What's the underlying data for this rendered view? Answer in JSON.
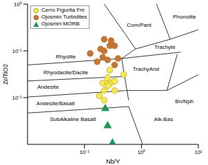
{
  "chart_data": {
    "type": "scatter",
    "x_label": "Nb/Y",
    "y_label": "Zr/TiO2",
    "log": true,
    "legend": "top-left",
    "xlim": [
      0.01,
      10
    ],
    "ylim": [
      0.001,
      1
    ],
    "xticks": [
      {
        "value": 0.1,
        "label": "10⁻¹"
      },
      {
        "value": 1,
        "label": "10⁰"
      },
      {
        "value": 10,
        "label": "10¹"
      }
    ],
    "yticks": [
      {
        "value": 0.01,
        "label": "10⁻²"
      },
      {
        "value": 0.1,
        "label": "10⁻¹"
      },
      {
        "value": 1,
        "label": "10⁰"
      }
    ],
    "series": [
      {
        "name": "Cerro Figurita Fm",
        "color": "#f4e94a",
        "marker": "circle",
        "x": [
          0.209,
          0.255,
          0.294,
          0.338,
          0.222,
          0.182,
          0.222,
          0.255,
          0.338,
          0.278,
          0.488,
          0.26
        ],
        "y": [
          0.0206,
          0.0206,
          0.0206,
          0.0226,
          0.0142,
          0.011,
          0.0088,
          0.0266,
          0.0142,
          0.0388,
          0.0312,
          0.018
        ]
      },
      {
        "name": "Ojosmin Turbidites",
        "color": "#c87533",
        "marker": "circle",
        "x": [
          0.192,
          0.222,
          0.278,
          0.338,
          0.222,
          0.294,
          0.126,
          0.209,
          0.389,
          0.167,
          0.338,
          0.255
        ],
        "y": [
          0.11,
          0.1,
          0.129,
          0.129,
          0.177,
          0.166,
          0.088,
          0.073,
          0.0686,
          0.0586,
          0.05,
          0.064
        ]
      },
      {
        "name": "Ojosmin MORB",
        "color": "#1a9850",
        "marker": "triangle",
        "x": [
          0.232,
          0.255,
          0.31
        ],
        "y": [
          0.0058,
          0.0025,
          0.00106
        ]
      }
    ],
    "boundaries": [
      {
        "x": [
          0.222,
          0.79
        ],
        "y": [
          1,
          0.11
        ]
      },
      {
        "x": [
          1.84,
          3.2,
          10
        ],
        "y": [
          1,
          0.177,
          0.283
        ]
      },
      {
        "x": [
          0.79,
          3.2
        ],
        "y": [
          0.11,
          0.177
        ]
      },
      {
        "x": [
          0.01,
          0.449
        ],
        "y": [
          0.05,
          0.0686
        ]
      },
      {
        "x": [
          0.449,
          4.93
        ],
        "y": [
          0.0686,
          0.094
        ]
      },
      {
        "x": [
          0.449,
          0.79
        ],
        "y": [
          0.0686,
          0.11
        ]
      },
      {
        "x": [
          0.449,
          0.596
        ],
        "y": [
          0.0686,
          0.0088
        ]
      },
      {
        "x": [
          0.01,
          0.489
        ],
        "y": [
          0.0227,
          0.0283
        ]
      },
      {
        "x": [
          0.01,
          0.547
        ],
        "y": [
          0.0103,
          0.0142
        ]
      },
      {
        "x": [
          0.01,
          0.596
        ],
        "y": [
          0.00469,
          0.00643
        ]
      },
      {
        "x": [
          0.596,
          1.047
        ],
        "y": [
          0.00643,
          0.001
        ]
      },
      {
        "x": [
          0.547,
          2.8
        ],
        "y": [
          0.0142,
          0.0142
        ]
      },
      {
        "x": [
          2.8,
          10
        ],
        "y": [
          0.0142,
          0.031
        ]
      },
      {
        "x": [
          2.8,
          4.28
        ],
        "y": [
          0.0142,
          0.0855
        ]
      }
    ],
    "annotations": [
      {
        "text": "Rhyolite",
        "x": 0.047,
        "y": 0.073
      },
      {
        "text": "Com/Pant",
        "x": 0.908,
        "y": 0.353
      },
      {
        "text": "Phonolite",
        "x": 5.68,
        "y": 0.532
      },
      {
        "text": "Trachyte",
        "x": 2.58,
        "y": 0.12
      },
      {
        "text": "TrachyAnd",
        "x": 1.2,
        "y": 0.04
      },
      {
        "text": "Rhyodacite/Dacite",
        "x": 0.047,
        "y": 0.034
      },
      {
        "text": "Andesite",
        "x": 0.023,
        "y": 0.0166
      },
      {
        "text": "Andesite/Basalt",
        "x": 0.031,
        "y": 0.0075
      },
      {
        "text": "SubAlkaline Basalt",
        "x": 0.0625,
        "y": 0.0034
      },
      {
        "text": "Alk-Bas",
        "x": 2.44,
        "y": 0.0034
      },
      {
        "text": "Bn/Nph",
        "x": 5.68,
        "y": 0.0083
      }
    ]
  }
}
